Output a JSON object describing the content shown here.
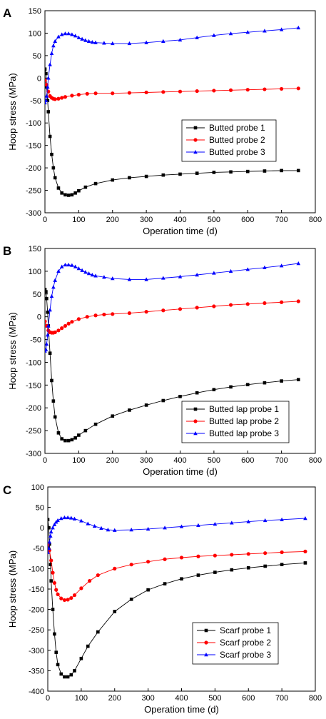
{
  "chart_data": [
    {
      "type": "line",
      "panel_label": "A",
      "xlabel": "Operation time (d)",
      "ylabel": "Hoop stress (MPa)",
      "xlim": [
        0,
        800
      ],
      "ylim": [
        -300,
        150
      ],
      "xticks": [
        0,
        100,
        200,
        300,
        400,
        500,
        600,
        700,
        800
      ],
      "yticks": [
        -300,
        -250,
        -200,
        -150,
        -100,
        -50,
        0,
        50,
        100,
        150
      ],
      "grid": false,
      "legend_position": "center-right",
      "series": [
        {
          "name": "Butted probe 1",
          "color": "#000000",
          "marker": "square",
          "x": [
            0,
            3,
            5,
            8,
            10,
            15,
            20,
            25,
            30,
            40,
            50,
            60,
            70,
            80,
            90,
            100,
            120,
            150,
            200,
            250,
            300,
            350,
            400,
            450,
            500,
            550,
            600,
            650,
            700,
            750
          ],
          "y": [
            20,
            10,
            -20,
            -50,
            -75,
            -130,
            -170,
            -200,
            -222,
            -245,
            -256,
            -260,
            -261,
            -260,
            -256,
            -251,
            -243,
            -235,
            -227,
            -222,
            -219,
            -216,
            -214,
            -212,
            -210,
            -209,
            -208,
            -207,
            -206,
            -206
          ]
        },
        {
          "name": "Butted probe 2",
          "color": "#ff0000",
          "marker": "circle",
          "x": [
            0,
            5,
            10,
            15,
            20,
            25,
            30,
            40,
            50,
            60,
            80,
            100,
            125,
            150,
            200,
            250,
            300,
            350,
            400,
            450,
            500,
            550,
            600,
            650,
            700,
            750
          ],
          "y": [
            -5,
            -15,
            -30,
            -40,
            -44,
            -46,
            -47,
            -46,
            -44,
            -42,
            -39,
            -37,
            -35,
            -34,
            -34,
            -33,
            -32,
            -31,
            -30,
            -29,
            -28,
            -27,
            -26,
            -25,
            -24,
            -23
          ]
        },
        {
          "name": "Butted probe 3",
          "color": "#0000ff",
          "marker": "triangle",
          "x": [
            0,
            3,
            5,
            8,
            10,
            15,
            20,
            25,
            30,
            40,
            50,
            60,
            70,
            80,
            90,
            100,
            110,
            120,
            130,
            140,
            150,
            175,
            200,
            250,
            300,
            350,
            400,
            450,
            500,
            550,
            600,
            650,
            700,
            750
          ],
          "y": [
            -55,
            -50,
            -40,
            -20,
            0,
            30,
            55,
            72,
            82,
            92,
            97,
            99,
            99,
            97,
            94,
            90,
            87,
            84,
            82,
            80,
            79,
            78,
            77,
            77,
            79,
            82,
            85,
            90,
            95,
            99,
            102,
            105,
            108,
            112
          ]
        }
      ]
    },
    {
      "type": "line",
      "panel_label": "B",
      "xlabel": "Operation time (d)",
      "ylabel": "Hoop stress (MPa)",
      "xlim": [
        0,
        800
      ],
      "ylim": [
        -300,
        150
      ],
      "xticks": [
        0,
        100,
        200,
        300,
        400,
        500,
        600,
        700,
        800
      ],
      "yticks": [
        -300,
        -250,
        -200,
        -150,
        -100,
        -50,
        0,
        50,
        100,
        150
      ],
      "grid": false,
      "legend_position": "bottom-right",
      "series": [
        {
          "name": "Butted lap probe 1",
          "color": "#000000",
          "marker": "square",
          "x": [
            0,
            3,
            5,
            8,
            10,
            15,
            20,
            25,
            30,
            40,
            50,
            60,
            70,
            80,
            90,
            100,
            120,
            150,
            200,
            250,
            300,
            350,
            400,
            450,
            500,
            550,
            600,
            650,
            700,
            750
          ],
          "y": [
            60,
            55,
            40,
            10,
            -20,
            -80,
            -140,
            -185,
            -220,
            -255,
            -268,
            -272,
            -272,
            -270,
            -266,
            -260,
            -250,
            -236,
            -218,
            -205,
            -194,
            -184,
            -175,
            -167,
            -160,
            -154,
            -149,
            -145,
            -141,
            -138
          ]
        },
        {
          "name": "Butted lap probe 2",
          "color": "#ff0000",
          "marker": "circle",
          "x": [
            0,
            5,
            10,
            15,
            20,
            25,
            30,
            40,
            50,
            60,
            70,
            80,
            100,
            125,
            150,
            175,
            200,
            250,
            300,
            350,
            400,
            450,
            500,
            550,
            600,
            650,
            700,
            750
          ],
          "y": [
            -10,
            -20,
            -30,
            -34,
            -35,
            -35,
            -34,
            -30,
            -25,
            -20,
            -15,
            -11,
            -5,
            0,
            3,
            5,
            6,
            8,
            11,
            14,
            17,
            20,
            23,
            26,
            28,
            30,
            32,
            34
          ]
        },
        {
          "name": "Butted lap probe 3",
          "color": "#0000ff",
          "marker": "triangle",
          "x": [
            0,
            3,
            5,
            8,
            10,
            15,
            20,
            25,
            30,
            40,
            50,
            60,
            70,
            80,
            90,
            100,
            110,
            120,
            130,
            140,
            150,
            175,
            200,
            250,
            300,
            350,
            400,
            450,
            500,
            550,
            600,
            650,
            700,
            750
          ],
          "y": [
            -75,
            -72,
            -60,
            -40,
            -20,
            15,
            45,
            65,
            80,
            100,
            110,
            114,
            114,
            113,
            110,
            106,
            102,
            98,
            95,
            92,
            90,
            87,
            84,
            82,
            82,
            85,
            88,
            92,
            96,
            100,
            104,
            108,
            112,
            117
          ]
        }
      ]
    },
    {
      "type": "line",
      "panel_label": "C",
      "xlabel": "Operation time (d)",
      "ylabel": "Hoop stress (MPa)",
      "xlim": [
        0,
        800
      ],
      "ylim": [
        -400,
        100
      ],
      "xticks": [
        0,
        100,
        200,
        300,
        400,
        500,
        600,
        700,
        800
      ],
      "yticks": [
        -400,
        -350,
        -300,
        -250,
        -200,
        -150,
        -100,
        -50,
        0,
        50,
        100
      ],
      "grid": false,
      "legend_position": "bottom-right",
      "series": [
        {
          "name": "Scarf probe 1",
          "color": "#000000",
          "marker": "square",
          "x": [
            0,
            3,
            5,
            8,
            10,
            15,
            20,
            25,
            30,
            40,
            50,
            60,
            70,
            80,
            100,
            120,
            150,
            200,
            250,
            300,
            350,
            400,
            450,
            500,
            550,
            600,
            650,
            700,
            770
          ],
          "y": [
            20,
            0,
            -40,
            -90,
            -130,
            -200,
            -260,
            -305,
            -335,
            -358,
            -365,
            -365,
            -360,
            -350,
            -320,
            -290,
            -255,
            -205,
            -175,
            -152,
            -137,
            -125,
            -116,
            -109,
            -103,
            -98,
            -94,
            -90,
            -86
          ]
        },
        {
          "name": "Scarf probe 2",
          "color": "#ff0000",
          "marker": "circle",
          "x": [
            0,
            5,
            10,
            15,
            20,
            25,
            30,
            40,
            50,
            60,
            70,
            80,
            100,
            125,
            150,
            200,
            250,
            300,
            350,
            400,
            450,
            500,
            550,
            600,
            650,
            700,
            770
          ],
          "y": [
            -40,
            -55,
            -80,
            -110,
            -135,
            -152,
            -163,
            -173,
            -177,
            -176,
            -172,
            -165,
            -148,
            -130,
            -116,
            -100,
            -90,
            -83,
            -77,
            -73,
            -70,
            -68,
            -66,
            -64,
            -62,
            -60,
            -58
          ]
        },
        {
          "name": "Scarf probe 3",
          "color": "#0000ff",
          "marker": "triangle",
          "x": [
            0,
            3,
            5,
            8,
            10,
            15,
            20,
            25,
            30,
            40,
            50,
            60,
            70,
            80,
            100,
            120,
            140,
            160,
            180,
            200,
            250,
            300,
            350,
            400,
            450,
            500,
            550,
            600,
            650,
            700,
            770
          ],
          "y": [
            -60,
            -50,
            -35,
            -20,
            -10,
            0,
            8,
            14,
            18,
            23,
            25,
            25,
            24,
            22,
            17,
            10,
            4,
            -1,
            -5,
            -6,
            -5,
            -3,
            0,
            3,
            6,
            9,
            12,
            15,
            18,
            20,
            23
          ]
        }
      ]
    }
  ]
}
